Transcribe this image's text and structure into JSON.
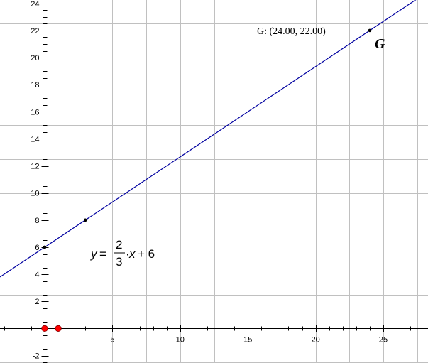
{
  "colors": {
    "background": "#ffffff",
    "grid": "#c0c0c0",
    "axis": "#000000",
    "line": "#0000a0",
    "point": "#000000",
    "origin_points": "#ff0000"
  },
  "axes": {
    "x_range": [
      -3.3,
      28.3
    ],
    "y_range": [
      -2.55,
      24.25
    ],
    "x_ticks": [
      5,
      10,
      15,
      20,
      25
    ],
    "y_ticks": [
      -2,
      2,
      4,
      6,
      8,
      10,
      12,
      14,
      16,
      18,
      20,
      22,
      24
    ],
    "x_tick_labels": [
      "5",
      "10",
      "15",
      "20",
      "25"
    ],
    "y_tick_labels": [
      "-2",
      "2",
      "4",
      "6",
      "8",
      "10",
      "12",
      "14",
      "16",
      "18",
      "20",
      "22",
      "24"
    ],
    "grid_step": 2.5,
    "grid": true
  },
  "line": {
    "slope": 0.6666667,
    "intercept": 6
  },
  "equation": {
    "lhs": "y",
    "equals": "=",
    "numerator": "2",
    "denominator": "3",
    "dot": "·",
    "var": "x",
    "rest": "+ 6"
  },
  "points": [
    {
      "name": "intercept-point",
      "x": 0,
      "y": 6
    },
    {
      "name": "point-3-8",
      "x": 3,
      "y": 8
    },
    {
      "name": "point-g",
      "x": 24,
      "y": 22
    }
  ],
  "red_points": [
    {
      "x": 0,
      "y": 0
    },
    {
      "x": 1,
      "y": 0
    }
  ],
  "point_g": {
    "coord_label": "G: (24.00, 22.00)",
    "name": "G"
  }
}
